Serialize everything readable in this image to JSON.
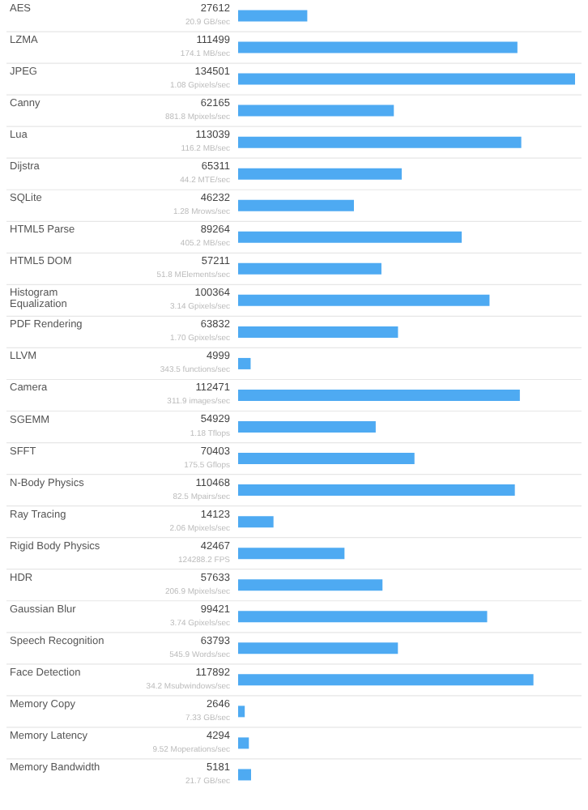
{
  "chart_data": {
    "type": "bar",
    "orientation": "horizontal",
    "categories": [
      "AES",
      "LZMA",
      "JPEG",
      "Canny",
      "Lua",
      "Dijstra",
      "SQLite",
      "HTML5 Parse",
      "HTML5 DOM",
      "Histogram Equalization",
      "PDF Rendering",
      "LLVM",
      "Camera",
      "SGEMM",
      "SFFT",
      "N-Body Physics",
      "Ray Tracing",
      "Rigid Body Physics",
      "HDR",
      "Gaussian Blur",
      "Speech Recognition",
      "Face Detection",
      "Memory Copy",
      "Memory Latency",
      "Memory Bandwidth"
    ],
    "values": [
      27612,
      111499,
      134501,
      62165,
      113039,
      65311,
      46232,
      89264,
      57211,
      100364,
      63832,
      4999,
      112471,
      54929,
      70403,
      110468,
      14123,
      42467,
      57633,
      99421,
      63793,
      117892,
      2646,
      4294,
      5181
    ],
    "color": "#4eaaf2",
    "xlim": [
      0,
      134501
    ],
    "tick_labels": "y",
    "data_labels": true,
    "grid": "y",
    "annotations": [
      "20.9 GB/sec",
      "174.1 MB/sec",
      "1.08 Gpixels/sec",
      "881.8 Mpixels/sec",
      "116.2 MB/sec",
      "44.2 MTE/sec",
      "1.28 Mrows/sec",
      "405.2 MB/sec",
      "51.8 MElements/sec",
      "3.14 Gpixels/sec",
      "1.70 Gpixels/sec",
      "343.5 functions/sec",
      "311.9 images/sec",
      "1.18 Tflops",
      "175.5 Gflops",
      "82.5 Mpairs/sec",
      "2.06 Mpixels/sec",
      "124288.2 FPS",
      "206.9 Mpixels/sec",
      "3.74 Gpixels/sec",
      "545.9 Words/sec",
      "34.2 Msubwindows/sec",
      "7.33 GB/sec",
      "9.52 Moperations/sec",
      "21.7 GB/sec"
    ]
  }
}
